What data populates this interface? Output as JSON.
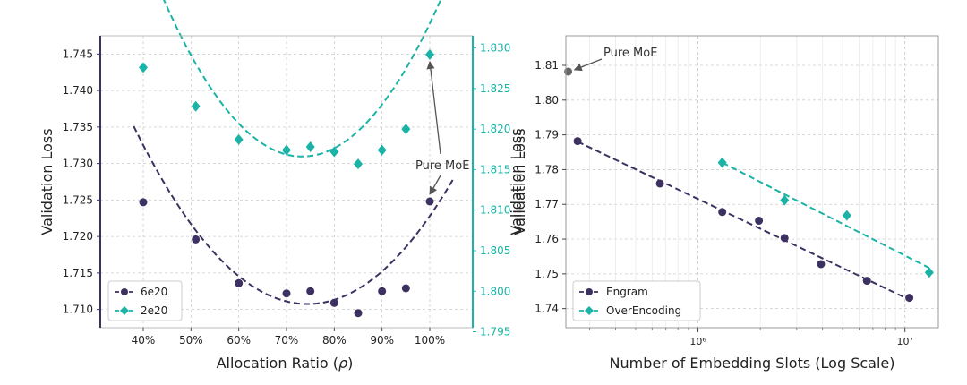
{
  "colors": {
    "primary": "#3d3161",
    "secondary": "#1ab3a6",
    "grid": "#cccccc",
    "gray_point": "#666666",
    "text": "#222222"
  },
  "chart_data": [
    {
      "type": "scatter",
      "title": "",
      "xlabel": "Allocation Ratio (ρ)",
      "ylabel": "Validation Loss",
      "ylabel_right": "Validation Loss",
      "x_ticks": [
        40,
        50,
        60,
        70,
        80,
        90,
        100
      ],
      "x_tick_labels": [
        "40%",
        "50%",
        "60%",
        "70%",
        "80%",
        "90%",
        "100%"
      ],
      "xlim": [
        31,
        109
      ],
      "ylim_left": [
        1.7075,
        1.7475
      ],
      "ylim_right": [
        1.7955,
        1.8315
      ],
      "y_ticks_left": [
        1.71,
        1.715,
        1.72,
        1.725,
        1.73,
        1.735,
        1.74,
        1.745
      ],
      "y_tick_labels_left": [
        "1.710",
        "1.715",
        "1.720",
        "1.725",
        "1.730",
        "1.735",
        "1.740",
        "1.745"
      ],
      "y_ticks_right": [
        1.795,
        1.8,
        1.805,
        1.81,
        1.815,
        1.82,
        1.825,
        1.83
      ],
      "y_tick_labels_right": [
        "1.795",
        "1.800",
        "1.805",
        "1.810",
        "1.815",
        "1.820",
        "1.825",
        "1.830"
      ],
      "series": [
        {
          "name": "6e20",
          "axis": "left",
          "marker": "circle",
          "x": [
            40,
            51,
            60,
            70,
            75,
            80,
            85,
            90,
            95,
            100
          ],
          "y": [
            1.7247,
            1.7196,
            1.7136,
            1.7122,
            1.7125,
            1.7109,
            1.7095,
            1.7125,
            1.7129,
            1.7248
          ],
          "fit": {
            "x_range": [
              38,
              105
            ],
            "a": 1.84e-05,
            "b": -0.002738,
            "c": 1.8126
          }
        },
        {
          "name": "2e20",
          "axis": "right",
          "marker": "diamond",
          "x": [
            40,
            51,
            60,
            70,
            75,
            80,
            85,
            90,
            95,
            100
          ],
          "y": [
            1.8276,
            1.8228,
            1.8187,
            1.8174,
            1.8178,
            1.8172,
            1.8157,
            1.8174,
            1.82,
            1.8292
          ],
          "fit": {
            "x_range": [
              38,
              105
            ],
            "a": 2.3e-05,
            "b": -0.003372,
            "c": 1.9402
          }
        }
      ],
      "legend": {
        "position": "bottom-left",
        "entries": [
          "6e20",
          "2e20"
        ]
      },
      "annotations": [
        {
          "text": "Pure MoE",
          "targets": [
            [
              100,
              1.8292,
              "right"
            ],
            [
              100,
              1.7248,
              "left"
            ]
          ]
        }
      ]
    },
    {
      "type": "scatter",
      "title": "",
      "xlabel": "Number of Embedding Slots (Log Scale)",
      "ylabel": "Validation Loss",
      "x_scale": "log",
      "xlim": [
        230000,
        14500000
      ],
      "ylim": [
        1.7345,
        1.8185
      ],
      "x_tick_labels": [
        "10⁶",
        "10⁷"
      ],
      "y_ticks": [
        1.74,
        1.75,
        1.76,
        1.77,
        1.78,
        1.79,
        1.8,
        1.81
      ],
      "y_tick_labels": [
        "1.74",
        "1.75",
        "1.76",
        "1.77",
        "1.78",
        "1.79",
        "1.80",
        "1.81"
      ],
      "series": [
        {
          "name": "Engram",
          "marker": "circle",
          "x": [
            262000,
            655000,
            1310000,
            1970000,
            2620000,
            3930000,
            6550000,
            10500000
          ],
          "y": [
            1.7882,
            1.776,
            1.7678,
            1.7653,
            1.7603,
            1.7528,
            1.748,
            1.7431
          ],
          "fit": {
            "x_range": [
              262000,
              10500000
            ]
          }
        },
        {
          "name": "OverEncoding",
          "marker": "diamond",
          "x": [
            1310000,
            2620000,
            5240000,
            13100000
          ],
          "y": [
            1.782,
            1.7712,
            1.7668,
            1.7504
          ],
          "fit": {
            "x_range": [
              1310000,
              13100000
            ]
          }
        }
      ],
      "reference_points": [
        {
          "label": "Pure MoE",
          "x": 236000,
          "y": 1.8082
        }
      ],
      "legend": {
        "position": "bottom-left",
        "entries": [
          "Engram",
          "OverEncoding"
        ]
      }
    }
  ]
}
